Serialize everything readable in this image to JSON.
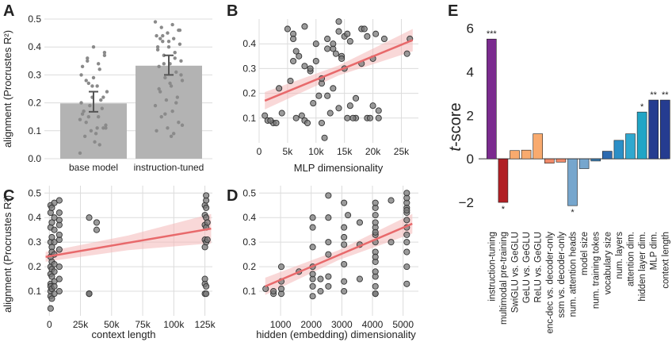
{
  "chart_data": [
    {
      "id": "A",
      "panel_label": "A",
      "type": "bar",
      "categories": [
        "base model",
        "instruction-tuned"
      ],
      "values": [
        0.198,
        0.333
      ],
      "error_low": [
        0.168,
        0.3
      ],
      "error_high": [
        0.24,
        0.37
      ],
      "ylabel": "alignment (Procrustes R²)",
      "ylim": [
        0,
        0.5
      ],
      "yticks": [
        "0.0",
        "0.1",
        "0.2",
        "0.3",
        "0.4",
        "0.5"
      ],
      "points": [
        [
          0.02,
          0.11,
          0.28,
          0.22,
          0.26,
          0.3,
          0.34,
          0.36,
          0.38,
          0.4,
          0.33,
          0.32,
          0.15,
          0.12,
          0.06,
          0.17,
          0.21,
          0.19,
          0.24,
          0.09,
          0.08,
          0.18,
          0.1,
          0.14,
          0.26,
          0.13,
          0.11,
          0.22,
          0.2,
          0.15,
          0.35,
          0.37,
          0.29,
          0.16,
          0.05,
          0.27,
          0.11
        ],
        [
          0.49,
          0.48,
          0.47,
          0.46,
          0.45,
          0.44,
          0.43,
          0.42,
          0.41,
          0.4,
          0.39,
          0.38,
          0.37,
          0.35,
          0.34,
          0.33,
          0.31,
          0.29,
          0.28,
          0.26,
          0.24,
          0.22,
          0.21,
          0.19,
          0.17,
          0.15,
          0.13,
          0.11,
          0.1,
          0.09,
          0.44,
          0.46,
          0.42,
          0.4,
          0.36,
          0.34,
          0.3,
          0.27,
          0.25,
          0.2,
          0.16,
          0.12,
          0.08,
          0.43
        ]
      ],
      "bar_color": "#b3b3b3"
    },
    {
      "id": "B",
      "panel_label": "B",
      "type": "scatter",
      "xlabel": "MLP dimensionality",
      "xlim": [
        0,
        28000
      ],
      "ylim": [
        0,
        0.5
      ],
      "xticks": [
        {
          "v": 0,
          "t": "0"
        },
        {
          "v": 5000,
          "t": "5k"
        },
        {
          "v": 10000,
          "t": "10k"
        },
        {
          "v": 15000,
          "t": "15k"
        },
        {
          "v": 20000,
          "t": "20k"
        },
        {
          "v": 25000,
          "t": "25k"
        }
      ],
      "yticks": [
        "0.1",
        "0.2",
        "0.3",
        "0.4"
      ],
      "x": [
        1000,
        1500,
        2500,
        2000,
        3000,
        3500,
        4000,
        5000,
        6000,
        6000,
        6500,
        7000,
        8000,
        8000,
        9000,
        9500,
        10000,
        10500,
        11000,
        11000,
        12000,
        12500,
        13000,
        13500,
        14000,
        14000,
        14500,
        15000,
        15000,
        15500,
        16000,
        17000,
        18000,
        18000,
        19000,
        19500,
        20000,
        20500,
        21000,
        22000,
        8000,
        9000,
        11000,
        12000,
        13000,
        14000,
        16000,
        17000,
        19000,
        20000,
        5500,
        6500,
        7500,
        10000,
        12000,
        14500,
        15500,
        16500,
        18500,
        21000,
        26000,
        26500,
        11500,
        13000,
        6000,
        8500
      ],
      "y": [
        0.11,
        0.09,
        0.08,
        0.09,
        0.08,
        0.22,
        0.12,
        0.46,
        0.44,
        0.33,
        0.1,
        0.35,
        0.09,
        0.31,
        0.29,
        0.16,
        0.4,
        0.19,
        0.08,
        0.24,
        0.42,
        0.12,
        0.38,
        0.36,
        0.49,
        0.14,
        0.35,
        0.3,
        0.43,
        0.1,
        0.15,
        0.18,
        0.46,
        0.32,
        0.1,
        0.1,
        0.34,
        0.44,
        0.13,
        0.42,
        0.47,
        0.3,
        0.26,
        0.38,
        0.22,
        0.45,
        0.41,
        0.1,
        0.43,
        0.15,
        0.25,
        0.37,
        0.11,
        0.33,
        0.19,
        0.34,
        0.44,
        0.1,
        0.46,
        0.1,
        0.36,
        0.42,
        0.02,
        0.4,
        0.42,
        0.08
      ],
      "fit": {
        "x0": 1000,
        "y0": 0.17,
        "x1": 27000,
        "y1": 0.415,
        "band": [
          0.035,
          0.02,
          0.045
        ]
      }
    },
    {
      "id": "C",
      "panel_label": "C",
      "type": "scatter",
      "xlabel": "context length",
      "ylabel": "alignment (Procrustes R²)",
      "xlim": [
        -4000,
        131000
      ],
      "ylim": [
        0,
        0.53
      ],
      "xticks": [
        {
          "v": 0,
          "t": "0"
        },
        {
          "v": 25000,
          "t": "25k"
        },
        {
          "v": 50000,
          "t": "50k"
        },
        {
          "v": 75000,
          "t": "75k"
        },
        {
          "v": 100000,
          "t": "100k"
        },
        {
          "v": 125000,
          "t": "125k"
        }
      ],
      "yticks": [
        "0.1",
        "0.2",
        "0.3",
        "0.4",
        "0.5"
      ],
      "x": [
        1000,
        1000,
        1000,
        1000,
        1000,
        1000,
        1000,
        1000,
        1000,
        1000,
        1000,
        1000,
        2000,
        2000,
        2000,
        2000,
        2000,
        2000,
        2000,
        2000,
        2000,
        2000,
        4000,
        4000,
        4000,
        4000,
        4000,
        4000,
        4000,
        4000,
        4000,
        4000,
        8000,
        8000,
        8000,
        8000,
        8000,
        8000,
        8000,
        8000,
        8000,
        8000,
        32000,
        32000,
        32000,
        32000,
        38000,
        38000,
        125000,
        125000,
        125000,
        125000,
        125000,
        125000,
        125000,
        125000,
        126000,
        126000,
        126000,
        126000,
        126000,
        126000,
        126000,
        126000,
        127000,
        127000
      ],
      "y": [
        0.03,
        0.08,
        0.1,
        0.13,
        0.17,
        0.2,
        0.24,
        0.3,
        0.36,
        0.42,
        0.45,
        0.12,
        0.07,
        0.11,
        0.16,
        0.22,
        0.28,
        0.32,
        0.38,
        0.44,
        0.19,
        0.26,
        0.09,
        0.14,
        0.18,
        0.25,
        0.3,
        0.35,
        0.4,
        0.46,
        0.12,
        0.21,
        0.1,
        0.15,
        0.2,
        0.27,
        0.31,
        0.37,
        0.42,
        0.47,
        0.33,
        0.39,
        0.09,
        0.4,
        0.09,
        0.09,
        0.38,
        0.35,
        0.09,
        0.13,
        0.15,
        0.28,
        0.31,
        0.37,
        0.41,
        0.45,
        0.09,
        0.12,
        0.3,
        0.36,
        0.4,
        0.44,
        0.47,
        0.49,
        0.38,
        0.31
      ],
      "fit": {
        "x0": -3000,
        "y0": 0.24,
        "x1": 130000,
        "y1": 0.355,
        "band": [
          0.02,
          0.03,
          0.06
        ]
      }
    },
    {
      "id": "D",
      "panel_label": "D",
      "type": "scatter",
      "xlabel": "hidden (embedding) dimensionality",
      "xlim": [
        300,
        5500
      ],
      "ylim": [
        0,
        0.53
      ],
      "xticks": [
        {
          "v": 1000,
          "t": "1000"
        },
        {
          "v": 2000,
          "t": "2000"
        },
        {
          "v": 3000,
          "t": "3000"
        },
        {
          "v": 4000,
          "t": "4000"
        },
        {
          "v": 5000,
          "t": "5000"
        }
      ],
      "yticks": [
        "0.1",
        "0.2",
        "0.3",
        "0.4",
        "0.5"
      ],
      "x": [
        512,
        768,
        768,
        1024,
        1024,
        1024,
        1024,
        1600,
        2048,
        2048,
        2048,
        2048,
        2048,
        2048,
        2304,
        2304,
        2560,
        2560,
        2560,
        2560,
        2560,
        3072,
        3072,
        3072,
        3072,
        3072,
        3072,
        3200,
        3584,
        3584,
        4096,
        4096,
        4096,
        4096,
        4096,
        4096,
        4096,
        4096,
        4096,
        4096,
        4096,
        4096,
        4096,
        4608,
        4608,
        5120,
        5120,
        5120,
        5120,
        5120,
        5120,
        5120,
        5120,
        5120,
        5120,
        5120,
        5120,
        4096,
        3072,
        2048,
        4096,
        2560,
        3584,
        5120,
        4096,
        2048
      ],
      "y": [
        0.11,
        0.09,
        0.1,
        0.09,
        0.11,
        0.14,
        0.2,
        0.18,
        0.08,
        0.12,
        0.15,
        0.2,
        0.28,
        0.36,
        0.15,
        0.1,
        0.12,
        0.16,
        0.25,
        0.3,
        0.4,
        0.1,
        0.14,
        0.21,
        0.29,
        0.36,
        0.46,
        0.41,
        0.15,
        0.29,
        0.09,
        0.12,
        0.16,
        0.18,
        0.22,
        0.26,
        0.3,
        0.33,
        0.36,
        0.38,
        0.41,
        0.44,
        0.46,
        0.3,
        0.47,
        0.13,
        0.2,
        0.26,
        0.3,
        0.33,
        0.36,
        0.39,
        0.42,
        0.44,
        0.46,
        0.48,
        0.5,
        0.24,
        0.32,
        0.4,
        0.09,
        0.49,
        0.38,
        0.43,
        0.34,
        0.17
      ],
      "fit": {
        "x0": 500,
        "y0": 0.12,
        "x1": 5300,
        "y1": 0.375,
        "band": [
          0.035,
          0.02,
          0.04
        ]
      }
    },
    {
      "id": "E",
      "panel_label": "E",
      "type": "bar",
      "ylabel": "t-score",
      "ylim": [
        -3.2,
        6.2
      ],
      "yticks": [
        {
          "v": -2,
          "t": "−2"
        },
        {
          "v": 0,
          "t": "0"
        },
        {
          "v": 2,
          "t": "2"
        },
        {
          "v": 4,
          "t": "4"
        },
        {
          "v": 6,
          "t": "6"
        }
      ],
      "categories": [
        "instruction-tuning",
        "multimodal pre-training",
        "SwiGLU vs. GeGLU",
        "GeLU vs. GeGLU",
        "ReLU vs. GeGLU",
        "enc-dec vs. decoder-only",
        "ssm vs. decoder-only",
        "num. attention heads",
        "model size",
        "num. training tokes",
        "vocabulary size",
        "num. layers",
        "attention dim.",
        "hidden layer dim.",
        "MLP dim.",
        "context length"
      ],
      "values": [
        5.5,
        -2.0,
        0.38,
        0.4,
        1.15,
        -0.2,
        -0.15,
        -2.15,
        -0.45,
        -0.1,
        0.35,
        0.85,
        1.15,
        2.15,
        2.7,
        2.7
      ],
      "significance": [
        "***",
        "*",
        "",
        "",
        "",
        "",
        "",
        "*",
        "",
        "",
        "",
        "",
        "",
        "*",
        "**",
        "**"
      ],
      "colors": [
        "#7b2b8f",
        "#b11f24",
        "#f8aa6e",
        "#f8aa6e",
        "#f8aa6e",
        "#f08a6a",
        "#f08a6a",
        "#76a6cd",
        "#76a6cd",
        "#3c7fb3",
        "#2e6bb0",
        "#2b8fc7",
        "#2fa8cf",
        "#21a5c6",
        "#253c90",
        "#253c90"
      ]
    }
  ]
}
